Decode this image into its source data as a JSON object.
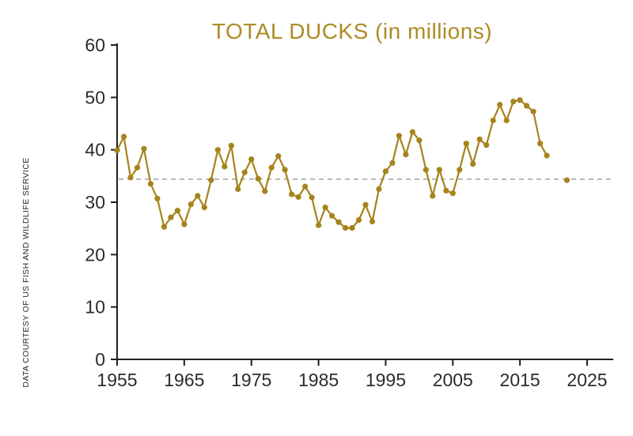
{
  "figure": {
    "title": "TOTAL DUCKS (in millions)",
    "source_caption": "DATA COURTESY OF US FISH AND WILDLIFE SERVICE"
  },
  "colors": {
    "line": "#a6831c",
    "marker": "#a6831c",
    "title": "#ad8b24",
    "axis": "#231f20",
    "tick_label": "#2b2b2b",
    "average_line": "#9a9a9a",
    "background": "#ffffff"
  },
  "chart_data": {
    "type": "line",
    "title": "TOTAL DUCKS (in millions)",
    "xlabel": "",
    "ylabel": "",
    "xlim": [
      1955,
      2025
    ],
    "ylim": [
      0,
      60
    ],
    "x_ticks": [
      1955,
      1965,
      1975,
      1985,
      1995,
      2005,
      2015,
      2025
    ],
    "y_ticks": [
      0,
      10,
      20,
      30,
      40,
      50,
      60
    ],
    "grid": false,
    "legend": "none",
    "average_line": 34.4,
    "series": [
      {
        "name": "Total ducks (millions)",
        "years": [
          1955,
          1956,
          1957,
          1958,
          1959,
          1960,
          1961,
          1962,
          1963,
          1964,
          1965,
          1966,
          1967,
          1968,
          1969,
          1970,
          1971,
          1972,
          1973,
          1974,
          1975,
          1976,
          1977,
          1978,
          1979,
          1980,
          1981,
          1982,
          1983,
          1984,
          1985,
          1986,
          1987,
          1988,
          1989,
          1990,
          1991,
          1992,
          1993,
          1994,
          1995,
          1996,
          1997,
          1998,
          1999,
          2000,
          2001,
          2002,
          2003,
          2004,
          2005,
          2006,
          2007,
          2008,
          2009,
          2010,
          2011,
          2012,
          2013,
          2014,
          2015,
          2016,
          2017,
          2018,
          2019,
          2022
        ],
        "values": [
          39.9,
          42.5,
          34.7,
          36.6,
          40.2,
          33.5,
          30.7,
          25.3,
          27.1,
          28.4,
          25.8,
          29.6,
          31.2,
          29.0,
          34.2,
          40.0,
          36.8,
          40.8,
          32.5,
          35.7,
          38.2,
          34.5,
          32.1,
          36.6,
          38.8,
          36.2,
          31.5,
          31.0,
          33.0,
          30.9,
          25.6,
          29.0,
          27.4,
          26.2,
          25.1,
          25.1,
          26.6,
          29.5,
          26.3,
          32.5,
          35.9,
          37.5,
          42.7,
          39.1,
          43.4,
          41.8,
          36.2,
          31.2,
          36.2,
          32.2,
          31.7,
          36.2,
          41.2,
          37.3,
          42.0,
          40.9,
          45.6,
          48.6,
          45.6,
          49.2,
          49.5,
          48.4,
          47.3,
          41.2,
          38.9,
          34.2
        ]
      }
    ]
  }
}
